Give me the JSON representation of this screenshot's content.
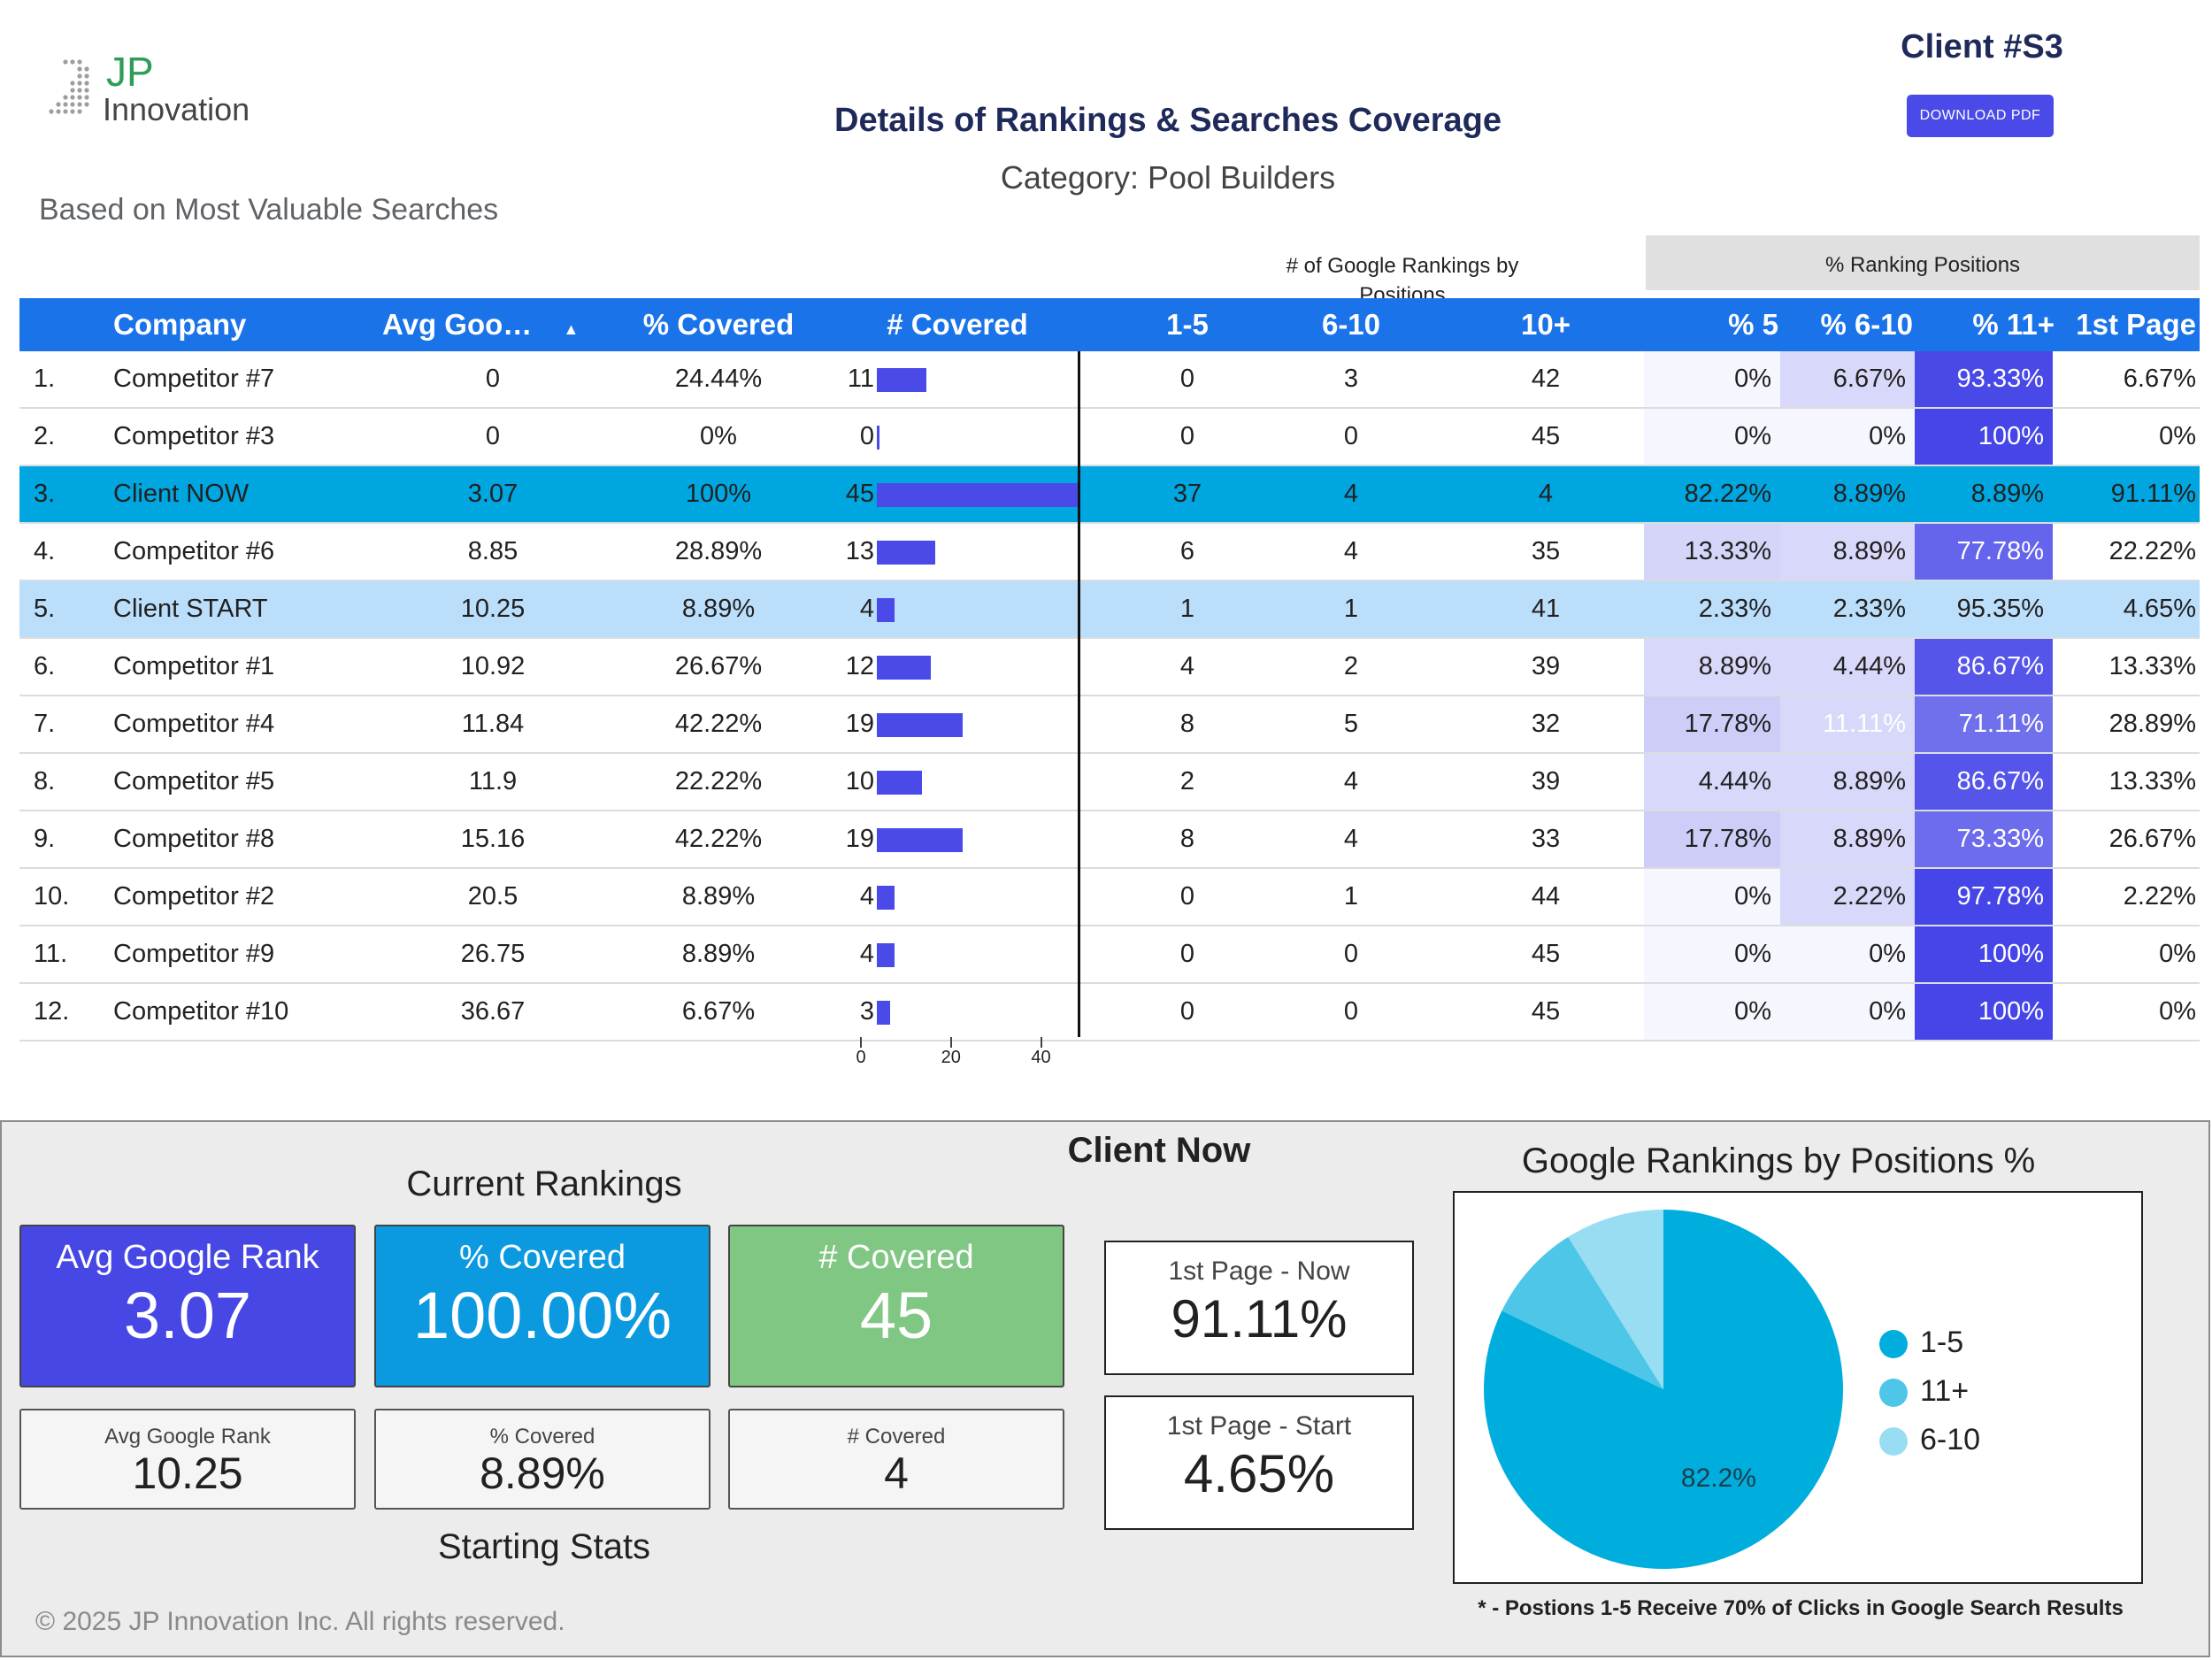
{
  "header": {
    "logo_jp": "JP",
    "logo_innovation": "Innovation",
    "client_id": "Client #S3",
    "download_label": "DOWNLOAD PDF",
    "title": "Details of Rankings & Searches Coverage",
    "category": "Category: Pool Builders",
    "subtitle": "Based on Most Valuable Searches"
  },
  "table": {
    "group_google": "# of Google Rankings by Positions",
    "group_pct": "% Ranking Positions",
    "columns": [
      "Company",
      "Avg Goo…",
      "% Covered",
      "# Covered",
      "1-5",
      "6-10",
      "10+",
      "% 5",
      "% 6-10",
      "% 11+",
      "1st Page"
    ],
    "sort_indicator": "▲",
    "bar_axis_max": 45,
    "bar_axis_ticks": [
      "0",
      "20",
      "40"
    ],
    "highlight_colors": {
      "now": "#00a6e0",
      "start": "#bbdefb"
    },
    "bar_color": "#4a4ae8",
    "rows": [
      {
        "rank": "1.",
        "company": "Competitor #7",
        "avg": "0",
        "pct_covered": "24.44%",
        "covered": 11,
        "p1_5": "0",
        "p6_10": "3",
        "p10": "42",
        "pct5": "0%",
        "pct6_10": "6.67%",
        "pct11": "93.33%",
        "first_page": "6.67%"
      },
      {
        "rank": "2.",
        "company": "Competitor #3",
        "avg": "0",
        "pct_covered": "0%",
        "covered": 0,
        "p1_5": "0",
        "p6_10": "0",
        "p10": "45",
        "pct5": "0%",
        "pct6_10": "0%",
        "pct11": "100%",
        "first_page": "0%"
      },
      {
        "rank": "3.",
        "company": "Client NOW",
        "avg": "3.07",
        "pct_covered": "100%",
        "covered": 45,
        "p1_5": "37",
        "p6_10": "4",
        "p10": "4",
        "pct5": "82.22%",
        "pct6_10": "8.89%",
        "pct11": "8.89%",
        "first_page": "91.11%",
        "highlight": "now"
      },
      {
        "rank": "4.",
        "company": "Competitor #6",
        "avg": "8.85",
        "pct_covered": "28.89%",
        "covered": 13,
        "p1_5": "6",
        "p6_10": "4",
        "p10": "35",
        "pct5": "13.33%",
        "pct6_10": "8.89%",
        "pct11": "77.78%",
        "first_page": "22.22%"
      },
      {
        "rank": "5.",
        "company": "Client START",
        "avg": "10.25",
        "pct_covered": "8.89%",
        "covered": 4,
        "p1_5": "1",
        "p6_10": "1",
        "p10": "41",
        "pct5": "2.33%",
        "pct6_10": "2.33%",
        "pct11": "95.35%",
        "first_page": "4.65%",
        "highlight": "start"
      },
      {
        "rank": "6.",
        "company": "Competitor #1",
        "avg": "10.92",
        "pct_covered": "26.67%",
        "covered": 12,
        "p1_5": "4",
        "p6_10": "2",
        "p10": "39",
        "pct5": "8.89%",
        "pct6_10": "4.44%",
        "pct11": "86.67%",
        "first_page": "13.33%"
      },
      {
        "rank": "7.",
        "company": "Competitor #4",
        "avg": "11.84",
        "pct_covered": "42.22%",
        "covered": 19,
        "p1_5": "8",
        "p6_10": "5",
        "p10": "32",
        "pct5": "17.78%",
        "pct6_10": "11.11%",
        "pct11": "71.11%",
        "first_page": "28.89%"
      },
      {
        "rank": "8.",
        "company": "Competitor #5",
        "avg": "11.9",
        "pct_covered": "22.22%",
        "covered": 10,
        "p1_5": "2",
        "p6_10": "4",
        "p10": "39",
        "pct5": "4.44%",
        "pct6_10": "8.89%",
        "pct11": "86.67%",
        "first_page": "13.33%"
      },
      {
        "rank": "9.",
        "company": "Competitor #8",
        "avg": "15.16",
        "pct_covered": "42.22%",
        "covered": 19,
        "p1_5": "8",
        "p6_10": "4",
        "p10": "33",
        "pct5": "17.78%",
        "pct6_10": "8.89%",
        "pct11": "73.33%",
        "first_page": "26.67%"
      },
      {
        "rank": "10.",
        "company": "Competitor #2",
        "avg": "20.5",
        "pct_covered": "8.89%",
        "covered": 4,
        "p1_5": "0",
        "p6_10": "1",
        "p10": "44",
        "pct5": "0%",
        "pct6_10": "2.22%",
        "pct11": "97.78%",
        "first_page": "2.22%"
      },
      {
        "rank": "11.",
        "company": "Competitor #9",
        "avg": "26.75",
        "pct_covered": "8.89%",
        "covered": 4,
        "p1_5": "0",
        "p6_10": "0",
        "p10": "45",
        "pct5": "0%",
        "pct6_10": "0%",
        "pct11": "100%",
        "first_page": "0%"
      },
      {
        "rank": "12.",
        "company": "Competitor #10",
        "avg": "36.67",
        "pct_covered": "6.67%",
        "covered": 3,
        "p1_5": "0",
        "p6_10": "0",
        "p10": "45",
        "pct5": "0%",
        "pct6_10": "0%",
        "pct11": "100%",
        "first_page": "0%"
      }
    ]
  },
  "panel": {
    "client_now": "Client Now",
    "current_title": "Current Rankings",
    "starting_title": "Starting Stats",
    "current": [
      {
        "label": "Avg Google Rank",
        "value": "3.07",
        "color": "#4747e5"
      },
      {
        "label": "% Covered",
        "value": "100.00%",
        "color": "#0b9ae0"
      },
      {
        "label": "# Covered",
        "value": "45",
        "color": "#81c784"
      }
    ],
    "starting": [
      {
        "label": "Avg Google Rank",
        "value": "10.25"
      },
      {
        "label": "% Covered",
        "value": "8.89%"
      },
      {
        "label": "# Covered",
        "value": "4"
      }
    ],
    "first_page_now_label": "1st Page - Now",
    "first_page_now_value": "91.11%",
    "first_page_start_label": "1st Page - Start",
    "first_page_start_value": "4.65%",
    "footnote": "* - Postions 1-5 Receive 70% of Clicks in Google Search Results",
    "copyright": "© 2025 JP Innovation Inc.  All rights reserved."
  },
  "chart_data": {
    "type": "pie",
    "title": "Google Rankings by Positions %",
    "categories": [
      "1-5",
      "11+",
      "6-10"
    ],
    "values": [
      82.2,
      8.9,
      8.9
    ],
    "colors": [
      "#00aede",
      "#4ec6e8",
      "#99ddf3"
    ],
    "data_labels": [
      "82.2%",
      "",
      ""
    ],
    "legend_position": "right"
  }
}
